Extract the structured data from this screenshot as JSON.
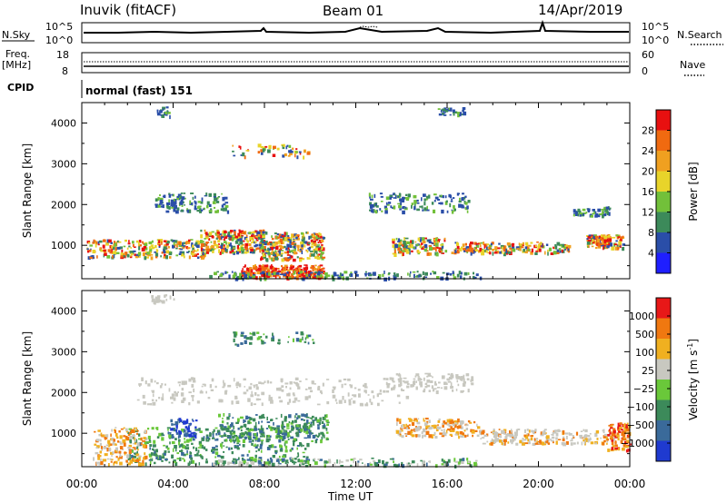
{
  "header": {
    "radar": "Inuvik (fitACF)",
    "beam": "Beam 01",
    "date": "14/Apr/2019"
  },
  "strip_sky": {
    "left_label": "N.Sky",
    "left_ticks": [
      "10^5",
      "10^0"
    ],
    "right_label": "N.Search",
    "right_ticks": [
      "10^5",
      "10^0"
    ]
  },
  "strip_freq": {
    "left_label_1": "Freq.",
    "left_label_2": "[MHz]",
    "left_ticks": [
      "18",
      "8"
    ],
    "right_label": "Nave",
    "right_ticks": [
      "60",
      "0"
    ]
  },
  "cpid": {
    "label": "CPID",
    "mode": "normal (fast) 151"
  },
  "chart_data": [
    {
      "type": "heatmap",
      "title": "Power",
      "ylabel": "Slant Range [km]",
      "xlabel": "Time UT",
      "x_ticks": [
        "00:00",
        "04:00",
        "08:00",
        "12:00",
        "16:00",
        "20:00",
        "00:00"
      ],
      "y_ticks": [
        "1000",
        "2000",
        "3000",
        "4000"
      ],
      "ylim": [
        180,
        4500
      ],
      "colorbar": {
        "label": "Power [dB]",
        "ticks": [
          "4",
          "8",
          "12",
          "16",
          "20",
          "24",
          "28"
        ],
        "colors": [
          "#1f1fff",
          "#2a4ea8",
          "#3c8a5a",
          "#72c03a",
          "#e8d42a",
          "#f0a020",
          "#f06a10",
          "#e81010"
        ]
      }
    },
    {
      "type": "heatmap",
      "title": "Velocity",
      "ylabel": "Slant Range [km]",
      "xlabel": "Time UT",
      "x_ticks": [
        "00:00",
        "04:00",
        "08:00",
        "12:00",
        "16:00",
        "20:00",
        "00:00"
      ],
      "y_ticks": [
        "1000",
        "2000",
        "3000",
        "4000"
      ],
      "ylim": [
        180,
        4500
      ],
      "colorbar": {
        "label": "Velocity [m s",
        "label_sup": "-1",
        "label_end": "]",
        "ticks": [
          "1000",
          "500",
          "100",
          "25",
          "−25",
          "−100",
          "−500",
          "−1000"
        ],
        "colors": [
          "#1f3ad0",
          "#3a6a9a",
          "#3c8a5a",
          "#6ac83a",
          "#c8c8c0",
          "#f0b020",
          "#f07810",
          "#e81818"
        ]
      }
    }
  ]
}
